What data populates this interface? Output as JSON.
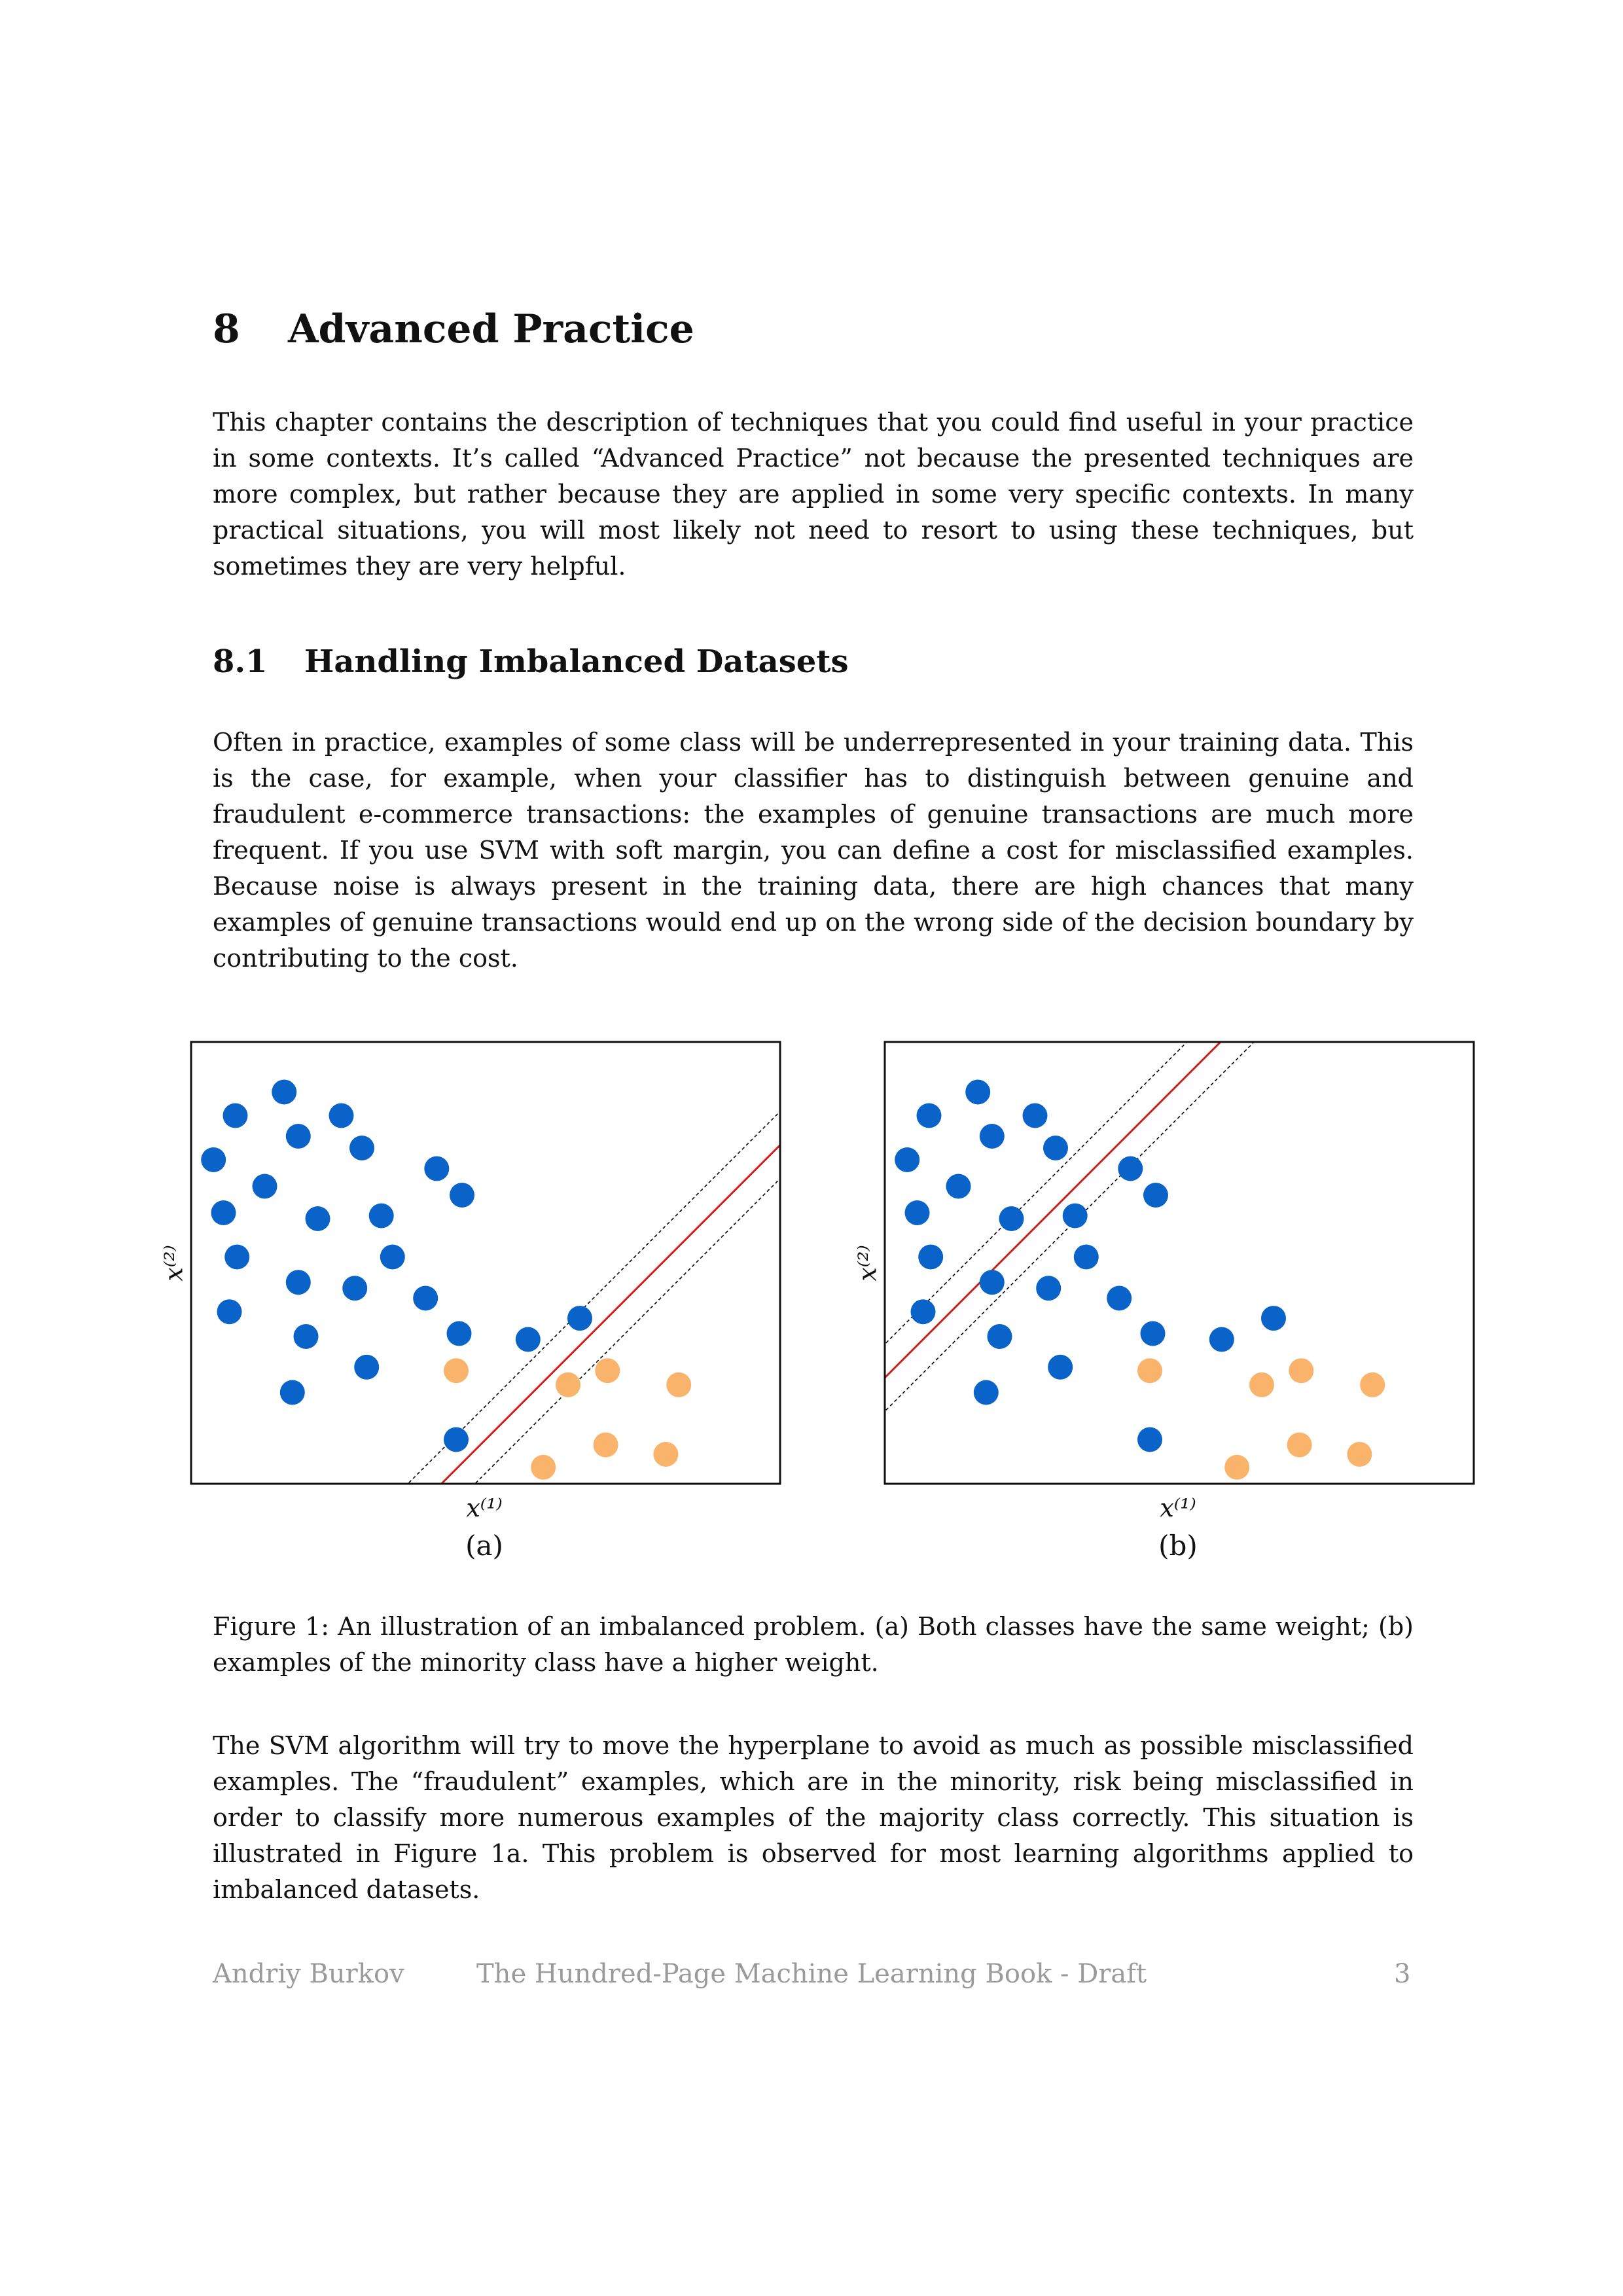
{
  "chapter": {
    "number": "8",
    "title": "Advanced Practice"
  },
  "intro": "This chapter contains the description of techniques that you could find useful in your practice in some contexts. It’s called “Advanced Practice” not because the presented techniques are more complex, but rather because they are applied in some very specific contexts. In many practical situations, you will most likely not need to resort to using these techniques, but sometimes they are very helpful.",
  "section": {
    "number": "8.1",
    "title": "Handling Imbalanced Datasets"
  },
  "para2": "Often in practice, examples of some class will be underrepresented in your training data. This is the case, for example, when your classifier has to distinguish between genuine and fraudulent e-commerce transactions: the examples of genuine transactions are much more frequent. If you use SVM with soft margin, you can define a cost for misclassified examples. Because noise is always present in the training data, there are high chances that many examples of genuine transactions would end up on the wrong side of the decision boundary by contributing to the cost.",
  "colors": {
    "majority": "#0a63c9",
    "minority": "#f9b36b",
    "boundary": "#d11f1f"
  },
  "chart_data": [
    {
      "type": "scatter",
      "panel_label": "(a)",
      "xlabel": "x⁽¹⁾",
      "ylabel": "x⁽²⁾",
      "xlim": [
        0,
        10
      ],
      "ylim": [
        0,
        7.5
      ],
      "series": [
        {
          "values": [
            [
              0.38,
              5.5
            ],
            [
              0.75,
              6.25
            ],
            [
              1.58,
              6.65
            ],
            [
              1.82,
              5.9
            ],
            [
              2.55,
              6.25
            ],
            [
              2.9,
              5.7
            ],
            [
              1.25,
              5.05
            ],
            [
              0.55,
              4.6
            ],
            [
              2.15,
              4.5
            ],
            [
              3.23,
              4.55
            ],
            [
              4.17,
              5.35
            ],
            [
              4.6,
              4.9
            ],
            [
              0.78,
              3.85
            ],
            [
              1.82,
              3.42
            ],
            [
              2.78,
              3.32
            ],
            [
              3.42,
              3.85
            ],
            [
              0.65,
              2.92
            ],
            [
              3.98,
              3.15
            ],
            [
              1.95,
              2.5
            ],
            [
              4.55,
              2.55
            ],
            [
              2.98,
              1.98
            ],
            [
              1.72,
              1.55
            ],
            [
              5.72,
              2.45
            ],
            [
              6.6,
              2.81
            ],
            [
              4.5,
              0.75
            ]
          ]
        },
        {
          "values": [
            [
              4.5,
              1.92
            ],
            [
              6.4,
              1.68
            ],
            [
              7.07,
              1.92
            ],
            [
              8.28,
              1.68
            ],
            [
              7.04,
              0.66
            ],
            [
              8.06,
              0.5
            ],
            [
              5.98,
              0.28
            ]
          ]
        }
      ],
      "boundary": {
        "slope": 1,
        "intercept": -4.25,
        "margin": 0.57
      }
    },
    {
      "type": "scatter",
      "panel_label": "(b)",
      "xlabel": "x⁽¹⁾",
      "ylabel": "x⁽²⁾",
      "xlim": [
        0,
        10
      ],
      "ylim": [
        0,
        7.5
      ],
      "series": [
        {
          "values": [
            [
              0.38,
              5.5
            ],
            [
              0.75,
              6.25
            ],
            [
              1.58,
              6.65
            ],
            [
              1.82,
              5.9
            ],
            [
              2.55,
              6.25
            ],
            [
              2.9,
              5.7
            ],
            [
              1.25,
              5.05
            ],
            [
              0.55,
              4.6
            ],
            [
              2.15,
              4.5
            ],
            [
              3.23,
              4.55
            ],
            [
              4.17,
              5.35
            ],
            [
              4.6,
              4.9
            ],
            [
              0.78,
              3.85
            ],
            [
              1.82,
              3.42
            ],
            [
              2.78,
              3.32
            ],
            [
              3.42,
              3.85
            ],
            [
              0.65,
              2.92
            ],
            [
              3.98,
              3.15
            ],
            [
              1.95,
              2.5
            ],
            [
              4.55,
              2.55
            ],
            [
              2.98,
              1.98
            ],
            [
              1.72,
              1.55
            ],
            [
              5.72,
              2.45
            ],
            [
              6.6,
              2.81
            ],
            [
              4.5,
              0.75
            ]
          ]
        },
        {
          "values": [
            [
              4.5,
              1.92
            ],
            [
              6.4,
              1.68
            ],
            [
              7.07,
              1.92
            ],
            [
              8.28,
              1.68
            ],
            [
              7.04,
              0.66
            ],
            [
              8.06,
              0.5
            ],
            [
              5.98,
              0.28
            ]
          ]
        }
      ],
      "boundary": {
        "slope": 1,
        "intercept": 1.8,
        "margin": 0.57
      }
    }
  ],
  "caption": "Figure 1: An illustration of an imbalanced problem. (a) Both classes have the same weight; (b) examples of the minority class have a higher weight.",
  "para3": "The SVM algorithm will try to move the hyperplane to avoid as much as possible misclassified examples. The “fraudulent” examples, which are in the minority, risk being misclassified in order to classify more numerous examples of the majority class correctly. This situation is illustrated in Figure 1a. This problem is observed for most learning algorithms applied to imbalanced datasets.",
  "footer": {
    "author": "Andriy Burkov",
    "book": "The Hundred-Page Machine Learning Book - Draft",
    "page": "3"
  }
}
